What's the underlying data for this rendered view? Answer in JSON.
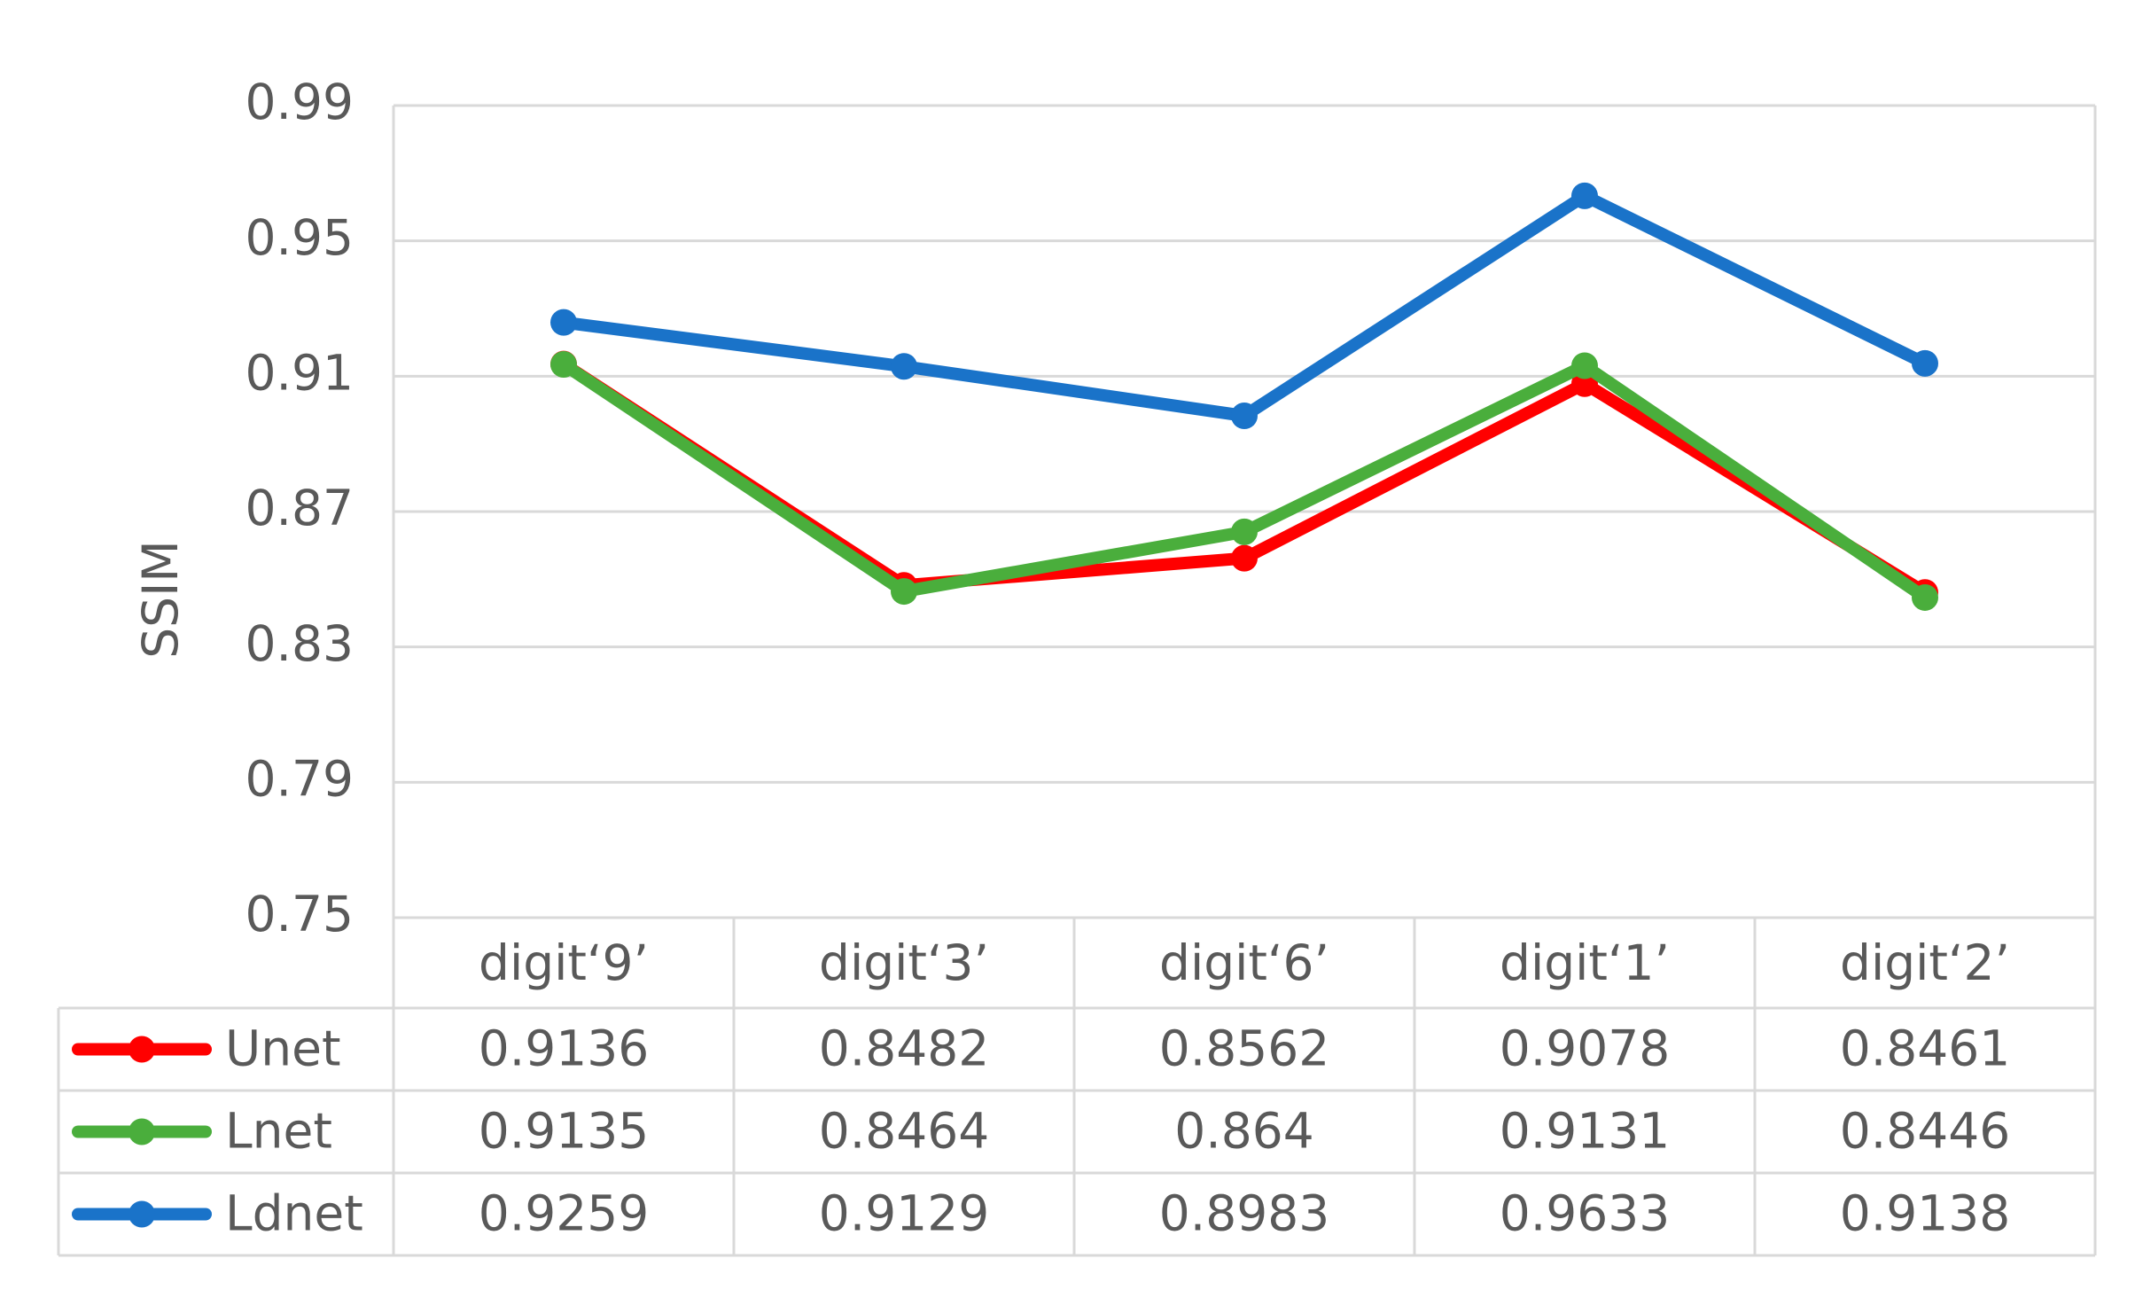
{
  "chart_data": {
    "type": "line",
    "y_label": "SSIM",
    "categories": [
      "digit‘9’",
      "digit‘3’",
      "digit‘6’",
      "digit‘1’",
      "digit‘2’"
    ],
    "series": [
      {
        "name": "Unet",
        "color": "#ff0000",
        "values": [
          0.9136,
          0.8482,
          0.8562,
          0.9078,
          0.8461
        ]
      },
      {
        "name": "Lnet",
        "color": "#4aae3c",
        "values": [
          0.9135,
          0.8464,
          0.864,
          0.9131,
          0.8446
        ]
      },
      {
        "name": "Ldnet",
        "color": "#1a73c9",
        "values": [
          0.9259,
          0.9129,
          0.8983,
          0.9633,
          0.9138
        ]
      }
    ],
    "ylim": [
      0.75,
      0.99
    ],
    "yticks": [
      0.75,
      0.79,
      0.83,
      0.87,
      0.91,
      0.95,
      0.99
    ],
    "grid": true,
    "data_table": true
  }
}
